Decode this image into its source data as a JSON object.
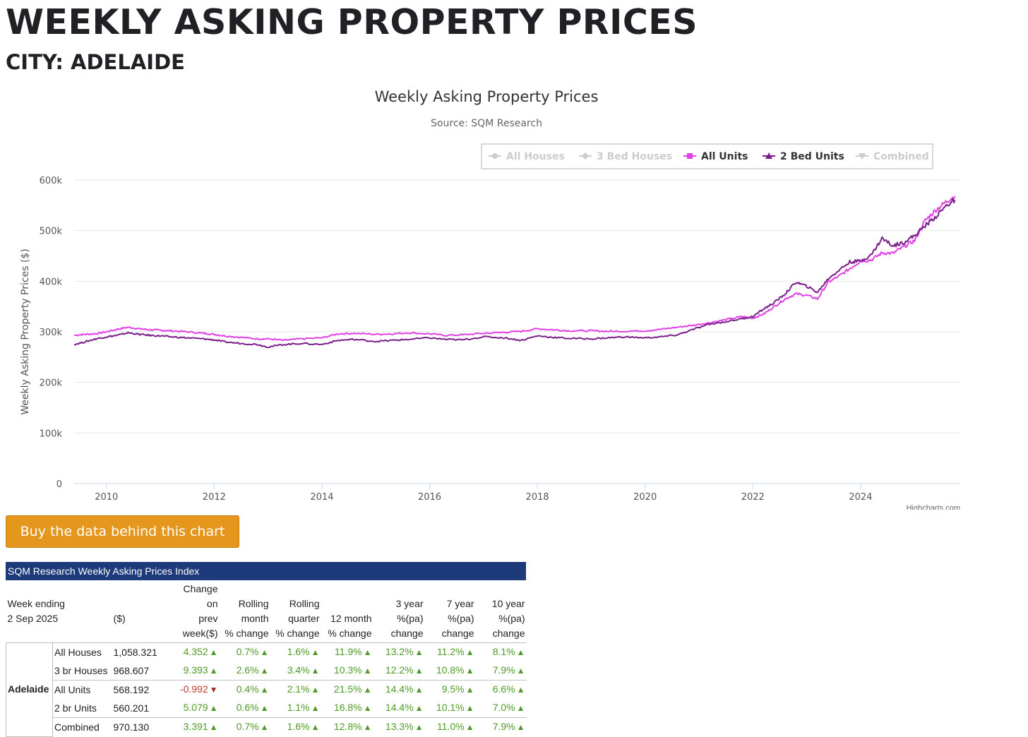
{
  "page": {
    "title": "WEEKLY ASKING PROPERTY PRICES",
    "subtitle": "CITY: ADELAIDE",
    "buy_button": "Buy the data behind this chart"
  },
  "chart_data": {
    "type": "line",
    "title": "Weekly Asking Property Prices",
    "subtitle": "Source: SQM Research",
    "ylabel": "Weekly Asking Property Prices ($)",
    "xlabel": "",
    "credit": "Highcharts.com",
    "ylim": [
      0,
      600000
    ],
    "xlim": [
      2009.4,
      2025.85
    ],
    "y_ticks": [
      0,
      100000,
      200000,
      300000,
      400000,
      500000,
      600000
    ],
    "y_tick_labels": [
      "0",
      "100k",
      "200k",
      "300k",
      "400k",
      "500k",
      "600k"
    ],
    "x_ticks": [
      2010,
      2012,
      2014,
      2016,
      2018,
      2020,
      2022,
      2024
    ],
    "x_tick_labels": [
      "2010",
      "2012",
      "2014",
      "2016",
      "2018",
      "2020",
      "2022",
      "2024"
    ],
    "grid": true,
    "legend_position": "top-right",
    "legend": [
      {
        "name": "All Houses",
        "visible": false,
        "color": "#cccccc",
        "marker": "circle"
      },
      {
        "name": "3 Bed Houses",
        "visible": false,
        "color": "#cccccc",
        "marker": "diamond"
      },
      {
        "name": "All Units",
        "visible": true,
        "color": "#e040e6",
        "marker": "square"
      },
      {
        "name": "2 Bed Units",
        "visible": true,
        "color": "#7a1e8a",
        "marker": "triangle"
      },
      {
        "name": "Combined",
        "visible": false,
        "color": "#cccccc",
        "marker": "triangle-down"
      }
    ],
    "series": [
      {
        "name": "All Units",
        "color": "#e040e6",
        "points": [
          [
            2009.4,
            293000
          ],
          [
            2009.6,
            295000
          ],
          [
            2009.8,
            296000
          ],
          [
            2010.0,
            300000
          ],
          [
            2010.2,
            305000
          ],
          [
            2010.4,
            309000
          ],
          [
            2010.6,
            306000
          ],
          [
            2010.8,
            304000
          ],
          [
            2011.0,
            303000
          ],
          [
            2011.2,
            302000
          ],
          [
            2011.5,
            300000
          ],
          [
            2011.8,
            297000
          ],
          [
            2012.0,
            295000
          ],
          [
            2012.2,
            292000
          ],
          [
            2012.5,
            289000
          ],
          [
            2012.8,
            286000
          ],
          [
            2013.0,
            286000
          ],
          [
            2013.3,
            283000
          ],
          [
            2013.6,
            286000
          ],
          [
            2014.0,
            288000
          ],
          [
            2014.3,
            296000
          ],
          [
            2014.6,
            297000
          ],
          [
            2015.0,
            295000
          ],
          [
            2015.3,
            296000
          ],
          [
            2015.6,
            298000
          ],
          [
            2016.0,
            296000
          ],
          [
            2016.3,
            293000
          ],
          [
            2016.6,
            294000
          ],
          [
            2017.0,
            297000
          ],
          [
            2017.4,
            299000
          ],
          [
            2017.7,
            301000
          ],
          [
            2018.0,
            306000
          ],
          [
            2018.3,
            304000
          ],
          [
            2018.6,
            302000
          ],
          [
            2019.0,
            302000
          ],
          [
            2019.3,
            301000
          ],
          [
            2019.6,
            301000
          ],
          [
            2020.0,
            302000
          ],
          [
            2020.3,
            305000
          ],
          [
            2020.6,
            309000
          ],
          [
            2020.9,
            313000
          ],
          [
            2021.2,
            318000
          ],
          [
            2021.5,
            324000
          ],
          [
            2021.8,
            330000
          ],
          [
            2022.0,
            327000
          ],
          [
            2022.2,
            335000
          ],
          [
            2022.4,
            350000
          ],
          [
            2022.6,
            365000
          ],
          [
            2022.8,
            375000
          ],
          [
            2023.0,
            372000
          ],
          [
            2023.2,
            365000
          ],
          [
            2023.4,
            398000
          ],
          [
            2023.6,
            410000
          ],
          [
            2023.8,
            425000
          ],
          [
            2024.0,
            440000
          ],
          [
            2024.2,
            442000
          ],
          [
            2024.4,
            456000
          ],
          [
            2024.6,
            455000
          ],
          [
            2024.8,
            468000
          ],
          [
            2025.0,
            480000
          ],
          [
            2025.2,
            520000
          ],
          [
            2025.4,
            541000
          ],
          [
            2025.6,
            558000
          ],
          [
            2025.75,
            568192
          ]
        ]
      },
      {
        "name": "2 Bed Units",
        "color": "#7a1e8a",
        "points": [
          [
            2009.4,
            275000
          ],
          [
            2009.6,
            280000
          ],
          [
            2009.8,
            286000
          ],
          [
            2010.0,
            290000
          ],
          [
            2010.2,
            293000
          ],
          [
            2010.4,
            298000
          ],
          [
            2010.6,
            295000
          ],
          [
            2010.8,
            293000
          ],
          [
            2011.0,
            292000
          ],
          [
            2011.2,
            290000
          ],
          [
            2011.5,
            288000
          ],
          [
            2011.8,
            286000
          ],
          [
            2012.0,
            284000
          ],
          [
            2012.2,
            280000
          ],
          [
            2012.5,
            277000
          ],
          [
            2012.8,
            275000
          ],
          [
            2013.0,
            270000
          ],
          [
            2013.3,
            275000
          ],
          [
            2013.6,
            277000
          ],
          [
            2014.0,
            275000
          ],
          [
            2014.3,
            283000
          ],
          [
            2014.6,
            285000
          ],
          [
            2015.0,
            281000
          ],
          [
            2015.3,
            283000
          ],
          [
            2015.6,
            285000
          ],
          [
            2016.0,
            288000
          ],
          [
            2016.3,
            285000
          ],
          [
            2016.6,
            284000
          ],
          [
            2017.0,
            290000
          ],
          [
            2017.4,
            288000
          ],
          [
            2017.7,
            283000
          ],
          [
            2018.0,
            292000
          ],
          [
            2018.3,
            289000
          ],
          [
            2018.6,
            287000
          ],
          [
            2019.0,
            286000
          ],
          [
            2019.3,
            288000
          ],
          [
            2019.6,
            290000
          ],
          [
            2020.0,
            288000
          ],
          [
            2020.3,
            290000
          ],
          [
            2020.6,
            294000
          ],
          [
            2020.9,
            305000
          ],
          [
            2021.2,
            315000
          ],
          [
            2021.5,
            320000
          ],
          [
            2021.8,
            326000
          ],
          [
            2022.0,
            330000
          ],
          [
            2022.2,
            345000
          ],
          [
            2022.4,
            358000
          ],
          [
            2022.6,
            375000
          ],
          [
            2022.8,
            398000
          ],
          [
            2023.0,
            390000
          ],
          [
            2023.2,
            378000
          ],
          [
            2023.4,
            405000
          ],
          [
            2023.6,
            422000
          ],
          [
            2023.8,
            438000
          ],
          [
            2024.0,
            440000
          ],
          [
            2024.2,
            452000
          ],
          [
            2024.4,
            485000
          ],
          [
            2024.6,
            470000
          ],
          [
            2024.8,
            477000
          ],
          [
            2025.0,
            490000
          ],
          [
            2025.2,
            510000
          ],
          [
            2025.4,
            528000
          ],
          [
            2025.6,
            550000
          ],
          [
            2025.75,
            560201
          ]
        ]
      }
    ]
  },
  "index_table": {
    "caption": "SQM Research Weekly Asking Prices Index",
    "headers": {
      "week_ending": "Week ending",
      "week_date": "2 Sep 2025",
      "value": "($)",
      "change_week": [
        "Change",
        "on",
        "prev",
        "week($)"
      ],
      "rolling_month": [
        "Rolling",
        "month",
        "% change"
      ],
      "rolling_quarter": [
        "Rolling",
        "quarter",
        "% change"
      ],
      "twelve_month": [
        "12 month",
        "% change"
      ],
      "three_year": [
        "3 year",
        "%(pa)",
        "change"
      ],
      "seven_year": [
        "7 year",
        "%(pa)",
        "change"
      ],
      "ten_year": [
        "10 year",
        "%(pa)",
        "change"
      ]
    },
    "city": "Adelaide",
    "rows": [
      {
        "type": "All Houses",
        "value": "1,058.321",
        "week": "4.352",
        "week_dir": "up",
        "month": "0.7%",
        "quarter": "1.6%",
        "year12": "11.9%",
        "year3": "13.2%",
        "year7": "11.2%",
        "year10": "8.1%"
      },
      {
        "type": "3 br Houses",
        "value": "968.607",
        "week": "9.393",
        "week_dir": "up",
        "month": "2.6%",
        "quarter": "3.4%",
        "year12": "10.3%",
        "year3": "12.2%",
        "year7": "10.8%",
        "year10": "7.9%"
      },
      {
        "type": "All Units",
        "value": "568.192",
        "week": "-0.992",
        "week_dir": "down",
        "month": "0.4%",
        "quarter": "2.1%",
        "year12": "21.5%",
        "year3": "14.4%",
        "year7": "9.5%",
        "year10": "6.6%"
      },
      {
        "type": "2 br Units",
        "value": "560.201",
        "week": "5.079",
        "week_dir": "up",
        "month": "0.6%",
        "quarter": "1.1%",
        "year12": "16.8%",
        "year3": "14.4%",
        "year7": "10.1%",
        "year10": "7.0%"
      },
      {
        "type": "Combined",
        "value": "970.130",
        "week": "3.391",
        "week_dir": "up",
        "month": "0.7%",
        "quarter": "1.6%",
        "year12": "12.8%",
        "year3": "13.3%",
        "year7": "11.0%",
        "year10": "7.9%"
      }
    ]
  }
}
